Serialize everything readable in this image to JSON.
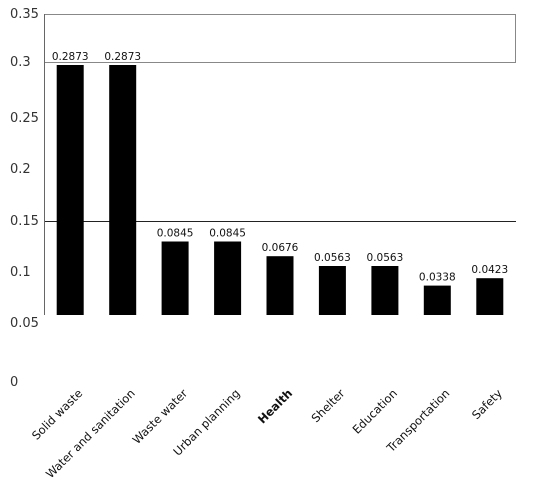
{
  "chart_data": {
    "type": "bar",
    "title": "",
    "xlabel": "",
    "ylabel": "",
    "categories": [
      "Solid waste",
      "Water and sanitation",
      "Waste water",
      "Urban planning",
      "Health",
      "Shelter",
      "Education",
      "Transportation",
      "Safety"
    ],
    "values": [
      0.2873,
      0.2873,
      0.0845,
      0.0845,
      0.0676,
      0.0563,
      0.0563,
      0.0338,
      0.0423
    ],
    "value_labels": [
      "0.2873",
      "0.2873",
      "0.0845",
      "0.0845",
      "0.0676",
      "0.0563",
      "0.0563",
      "0.0338",
      "0.0423"
    ],
    "bar_color": "#000000",
    "y_tick_labels": [
      "0.35",
      "0.3",
      "0.25",
      "0.2",
      "0.15",
      "0.1",
      "0.05"
    ],
    "bottom_label": "0",
    "ylim": [
      0,
      0.35
    ],
    "grid": true,
    "legend": "none",
    "emphasized_category": "Health"
  }
}
